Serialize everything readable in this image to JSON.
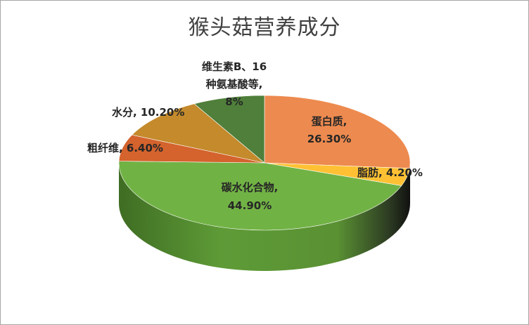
{
  "chart_data": {
    "type": "pie",
    "title": "猴头菇营养成分",
    "slices": [
      {
        "name": "蛋白质",
        "value": 26.3,
        "label": "26.30%",
        "color": "#ED8A4F"
      },
      {
        "name": "脂肪",
        "value": 4.2,
        "label": "4.20%",
        "color": "#FFC133"
      },
      {
        "name": "碳水化合物",
        "value": 44.9,
        "label": "44.90%",
        "color": "#71B245"
      },
      {
        "name": "粗纤维",
        "value": 6.4,
        "label": "6.40%",
        "color": "#D4632D"
      },
      {
        "name": "水分",
        "value": 10.2,
        "label": "10.20%",
        "color": "#C48A2C"
      },
      {
        "name": "维生素B、16种氨基酸等",
        "value": 8,
        "label": "8%",
        "color": "#4F7F3A"
      }
    ],
    "style": "3d"
  },
  "labels": {
    "protein_line1": "蛋白质,",
    "protein_line2": "26.30%",
    "fat": "脂肪, 4.20%",
    "carb_line1": "碳水化合物,",
    "carb_line2": "44.90%",
    "fiber": "粗纤维, 6.40%",
    "water": "水分, 10.20%",
    "vitamin_line1": "维生素B、16",
    "vitamin_line2": "种氨基酸等,",
    "vitamin_line3": "8%"
  }
}
